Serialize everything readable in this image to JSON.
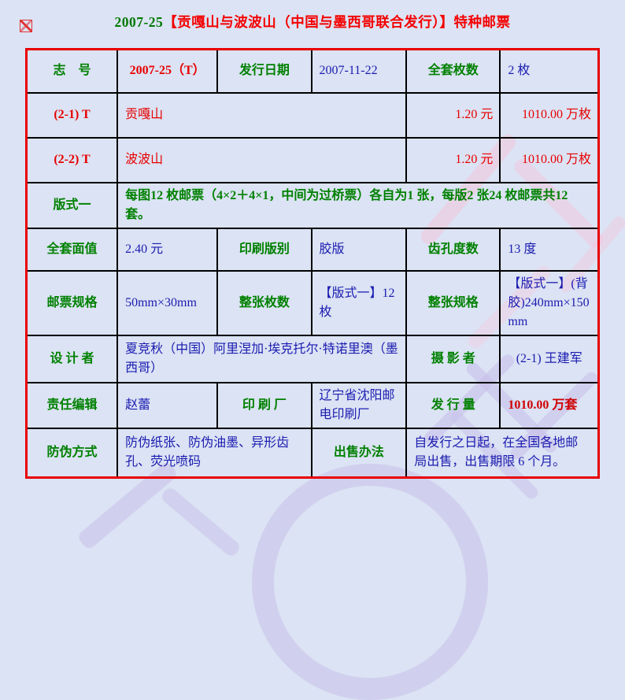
{
  "title": {
    "code": "2007-25",
    "rest": "【贡嘎山与波波山（中国与墨西哥联合发行）】特种邮票"
  },
  "icons": {
    "top_left": "broken-image-icon"
  },
  "colors": {
    "background": "#dbe3f4",
    "label_green": "#008000",
    "value_blue": "#1b1bb0",
    "accent_red": "#e80000",
    "table_border_red": "#e80000",
    "inner_border": "#000000",
    "watermark_pink": "#f3c6db",
    "watermark_lavender": "#c8c0ea"
  },
  "table": {
    "col_widths_pct": [
      15.9,
      17.5,
      16.4,
      16.6,
      16.4,
      17.2
    ],
    "rows": [
      {
        "h": 55,
        "cells": [
          {
            "text": "志　号",
            "style": "label"
          },
          {
            "text": "2007-25（T）",
            "style": "red-bold-center"
          },
          {
            "text": "发行日期",
            "style": "label"
          },
          {
            "text": "2007-11-22",
            "style": "value"
          },
          {
            "text": "全套枚数",
            "style": "label"
          },
          {
            "text": "2 枚",
            "style": "value"
          }
        ]
      },
      {
        "h": 57,
        "cells": [
          {
            "text": "(2-1) T",
            "style": "red-bold-center"
          },
          {
            "text": "贡嘎山",
            "style": "red",
            "span": 3
          },
          {
            "text": "1.20 元",
            "style": "red-right"
          },
          {
            "text": "1010.00 万枚",
            "style": "red-right"
          }
        ]
      },
      {
        "h": 57,
        "cells": [
          {
            "text": "(2-2) T",
            "style": "red-bold-center"
          },
          {
            "text": "波波山",
            "style": "red",
            "span": 3
          },
          {
            "text": "1.20 元",
            "style": "red-right"
          },
          {
            "text": "1010.00 万枚",
            "style": "red-right"
          }
        ]
      },
      {
        "h": 58,
        "cells": [
          {
            "text": "版式一",
            "style": "label"
          },
          {
            "text": "每图12 枚邮票（4×2＋4×1，中间为过桥票）各自为1 张，每版2 张24 枚邮票共12 套。",
            "style": "green-left",
            "span": 5
          }
        ]
      },
      {
        "h": 54,
        "cells": [
          {
            "text": "全套面值",
            "style": "label"
          },
          {
            "text": "2.40 元",
            "style": "value"
          },
          {
            "text": "印刷版别",
            "style": "label"
          },
          {
            "text": "胶版",
            "style": "value"
          },
          {
            "text": "齿孔度数",
            "style": "label"
          },
          {
            "text": "13 度",
            "style": "value"
          }
        ]
      },
      {
        "h": 55,
        "cells": [
          {
            "text": "邮票规格",
            "style": "label"
          },
          {
            "text": "50mm×30mm",
            "style": "value"
          },
          {
            "text": "整张枚数",
            "style": "label"
          },
          {
            "text": "【版式一】12 枚",
            "style": "value"
          },
          {
            "text": "整张规格",
            "style": "label"
          },
          {
            "text": "【版式一】(背胶)240mm×150mm",
            "style": "value"
          }
        ]
      },
      {
        "h": 60,
        "cells": [
          {
            "text": "设 计 者",
            "style": "label"
          },
          {
            "text": "夏竞秋（中国）阿里涅加·埃克托尔·特诺里澳（墨西哥）",
            "style": "value",
            "span": 3
          },
          {
            "text": "摄 影 者",
            "style": "label"
          },
          {
            "text": "(2-1) 王建军",
            "style": "value-center"
          }
        ]
      },
      {
        "h": 56,
        "cells": [
          {
            "text": "责任编辑",
            "style": "label"
          },
          {
            "text": "赵蕾",
            "style": "value"
          },
          {
            "text": "印 刷 厂",
            "style": "label"
          },
          {
            "text": "辽宁省沈阳邮电印刷厂",
            "style": "value"
          },
          {
            "text": "发 行 量",
            "style": "label"
          },
          {
            "text": "1010.00 万套",
            "style": "red-bold"
          }
        ]
      },
      {
        "h": 63,
        "cells": [
          {
            "text": "防伪方式",
            "style": "label"
          },
          {
            "text": "防伪纸张、防伪油墨、异形齿孔、荧光喷码",
            "style": "value",
            "span": 2
          },
          {
            "text": "出售办法",
            "style": "label"
          },
          {
            "text": "自发行之日起，在全国各地邮局出售，出售期限 6 个月。",
            "style": "value",
            "span": 2
          }
        ]
      }
    ]
  }
}
